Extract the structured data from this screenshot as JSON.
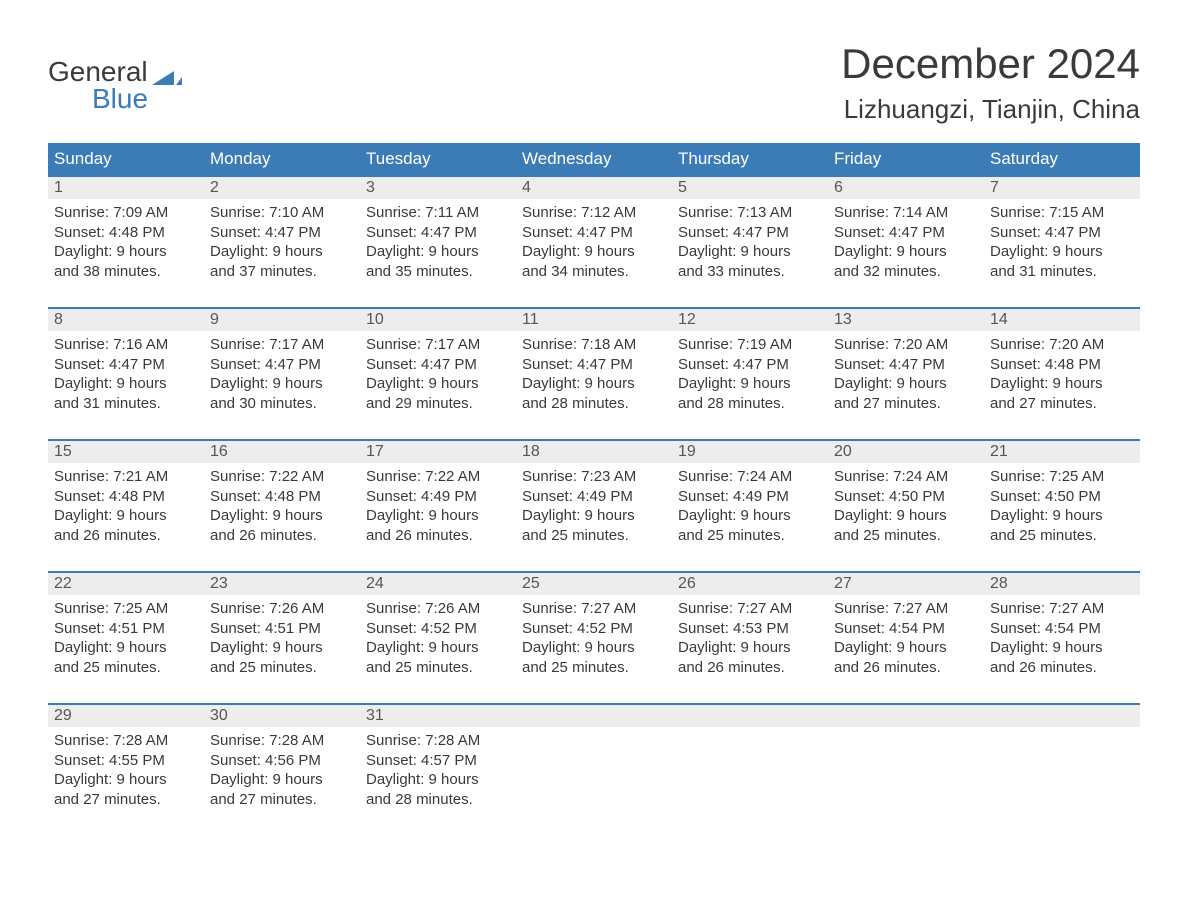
{
  "logo": {
    "word1": "General",
    "word2": "Blue",
    "text_color": "#3a3a3a",
    "blue_color": "#3c7cb6"
  },
  "header": {
    "title": "December 2024",
    "location": "Lizhuangzi, Tianjin, China"
  },
  "style": {
    "header_bg": "#3c7cb6",
    "header_text_color": "#ffffff",
    "daynum_bg": "#ededed",
    "row_border_color": "#3c7cb6",
    "body_text_color": "#3a3a3a",
    "title_fontsize": 42,
    "location_fontsize": 26,
    "daynum_fontsize": 16,
    "body_fontsize": 15,
    "weekday_fontsize": 17,
    "page_bg": "#ffffff"
  },
  "weekdays": [
    "Sunday",
    "Monday",
    "Tuesday",
    "Wednesday",
    "Thursday",
    "Friday",
    "Saturday"
  ],
  "labels": {
    "sunrise": "Sunrise:",
    "sunset": "Sunset:",
    "daylight": "Daylight:",
    "hours_word": "hours",
    "and_word": "and",
    "minutes_word": "minutes."
  },
  "weeks": [
    [
      {
        "day": 1,
        "sunrise": "7:09 AM",
        "sunset": "4:48 PM",
        "dl_h": 9,
        "dl_m": 38
      },
      {
        "day": 2,
        "sunrise": "7:10 AM",
        "sunset": "4:47 PM",
        "dl_h": 9,
        "dl_m": 37
      },
      {
        "day": 3,
        "sunrise": "7:11 AM",
        "sunset": "4:47 PM",
        "dl_h": 9,
        "dl_m": 35
      },
      {
        "day": 4,
        "sunrise": "7:12 AM",
        "sunset": "4:47 PM",
        "dl_h": 9,
        "dl_m": 34
      },
      {
        "day": 5,
        "sunrise": "7:13 AM",
        "sunset": "4:47 PM",
        "dl_h": 9,
        "dl_m": 33
      },
      {
        "day": 6,
        "sunrise": "7:14 AM",
        "sunset": "4:47 PM",
        "dl_h": 9,
        "dl_m": 32
      },
      {
        "day": 7,
        "sunrise": "7:15 AM",
        "sunset": "4:47 PM",
        "dl_h": 9,
        "dl_m": 31
      }
    ],
    [
      {
        "day": 8,
        "sunrise": "7:16 AM",
        "sunset": "4:47 PM",
        "dl_h": 9,
        "dl_m": 31
      },
      {
        "day": 9,
        "sunrise": "7:17 AM",
        "sunset": "4:47 PM",
        "dl_h": 9,
        "dl_m": 30
      },
      {
        "day": 10,
        "sunrise": "7:17 AM",
        "sunset": "4:47 PM",
        "dl_h": 9,
        "dl_m": 29
      },
      {
        "day": 11,
        "sunrise": "7:18 AM",
        "sunset": "4:47 PM",
        "dl_h": 9,
        "dl_m": 28
      },
      {
        "day": 12,
        "sunrise": "7:19 AM",
        "sunset": "4:47 PM",
        "dl_h": 9,
        "dl_m": 28
      },
      {
        "day": 13,
        "sunrise": "7:20 AM",
        "sunset": "4:47 PM",
        "dl_h": 9,
        "dl_m": 27
      },
      {
        "day": 14,
        "sunrise": "7:20 AM",
        "sunset": "4:48 PM",
        "dl_h": 9,
        "dl_m": 27
      }
    ],
    [
      {
        "day": 15,
        "sunrise": "7:21 AM",
        "sunset": "4:48 PM",
        "dl_h": 9,
        "dl_m": 26
      },
      {
        "day": 16,
        "sunrise": "7:22 AM",
        "sunset": "4:48 PM",
        "dl_h": 9,
        "dl_m": 26
      },
      {
        "day": 17,
        "sunrise": "7:22 AM",
        "sunset": "4:49 PM",
        "dl_h": 9,
        "dl_m": 26
      },
      {
        "day": 18,
        "sunrise": "7:23 AM",
        "sunset": "4:49 PM",
        "dl_h": 9,
        "dl_m": 25
      },
      {
        "day": 19,
        "sunrise": "7:24 AM",
        "sunset": "4:49 PM",
        "dl_h": 9,
        "dl_m": 25
      },
      {
        "day": 20,
        "sunrise": "7:24 AM",
        "sunset": "4:50 PM",
        "dl_h": 9,
        "dl_m": 25
      },
      {
        "day": 21,
        "sunrise": "7:25 AM",
        "sunset": "4:50 PM",
        "dl_h": 9,
        "dl_m": 25
      }
    ],
    [
      {
        "day": 22,
        "sunrise": "7:25 AM",
        "sunset": "4:51 PM",
        "dl_h": 9,
        "dl_m": 25
      },
      {
        "day": 23,
        "sunrise": "7:26 AM",
        "sunset": "4:51 PM",
        "dl_h": 9,
        "dl_m": 25
      },
      {
        "day": 24,
        "sunrise": "7:26 AM",
        "sunset": "4:52 PM",
        "dl_h": 9,
        "dl_m": 25
      },
      {
        "day": 25,
        "sunrise": "7:27 AM",
        "sunset": "4:52 PM",
        "dl_h": 9,
        "dl_m": 25
      },
      {
        "day": 26,
        "sunrise": "7:27 AM",
        "sunset": "4:53 PM",
        "dl_h": 9,
        "dl_m": 26
      },
      {
        "day": 27,
        "sunrise": "7:27 AM",
        "sunset": "4:54 PM",
        "dl_h": 9,
        "dl_m": 26
      },
      {
        "day": 28,
        "sunrise": "7:27 AM",
        "sunset": "4:54 PM",
        "dl_h": 9,
        "dl_m": 26
      }
    ],
    [
      {
        "day": 29,
        "sunrise": "7:28 AM",
        "sunset": "4:55 PM",
        "dl_h": 9,
        "dl_m": 27
      },
      {
        "day": 30,
        "sunrise": "7:28 AM",
        "sunset": "4:56 PM",
        "dl_h": 9,
        "dl_m": 27
      },
      {
        "day": 31,
        "sunrise": "7:28 AM",
        "sunset": "4:57 PM",
        "dl_h": 9,
        "dl_m": 28
      },
      null,
      null,
      null,
      null
    ]
  ]
}
